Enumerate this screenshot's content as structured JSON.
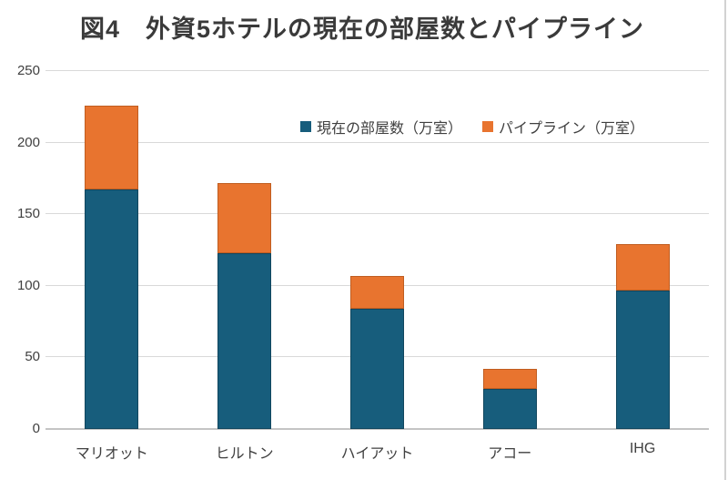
{
  "title": "図4　外資5ホテルの現在の部屋数とパイプライン",
  "colors": {
    "current": "#175d7c",
    "pipeline": "#e8742f",
    "gridline": "#d9d9d9",
    "text": "#404040",
    "title_text": "#3a3a3a"
  },
  "chart_data": {
    "type": "bar",
    "stacked": true,
    "title": "図4　外資5ホテルの現在の部屋数とパイプライン",
    "categories": [
      "マリオット",
      "ヒルトン",
      "ハイアット",
      "アコー",
      "IHG"
    ],
    "series": [
      {
        "name": "現在の部屋数（万室）",
        "color": "#175d7c",
        "values": [
          167,
          123,
          84,
          28,
          97
        ]
      },
      {
        "name": "パイプライン（万室）",
        "color": "#e8742f",
        "values": [
          59,
          49,
          23,
          14,
          32
        ]
      }
    ],
    "xlabel": "",
    "ylabel": "",
    "ylim": [
      0,
      250
    ],
    "yticks": [
      0,
      50,
      100,
      150,
      200,
      250
    ],
    "grid": true,
    "legend_position": "top-center-inside"
  }
}
